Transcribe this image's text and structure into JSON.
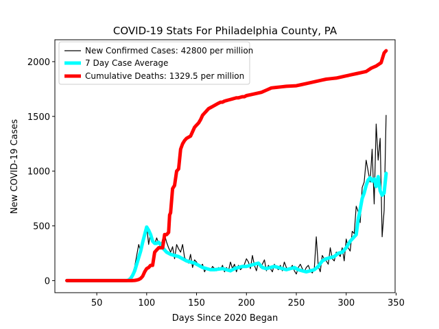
{
  "chart_data": {
    "type": "line",
    "title": "COVID-19 Stats For Philadelphia County, PA",
    "xlabel": "Days Since 2020 Began",
    "ylabel": "New COVID-19 Cases",
    "xlim": [
      8,
      349
    ],
    "ylim": [
      -110,
      2200
    ],
    "xticks": [
      50,
      100,
      150,
      200,
      250,
      300,
      350
    ],
    "yticks": [
      0,
      500,
      1000,
      1500,
      2000
    ],
    "grid": false,
    "legend_position": "top-left",
    "series": [
      {
        "name": "New Confirmed Cases: 42800 per million",
        "color": "#000000",
        "style": "thin",
        "x": [
          20,
          80,
          83,
          86,
          88,
          90,
          92,
          94,
          96,
          98,
          100,
          102,
          104,
          106,
          108,
          110,
          112,
          114,
          116,
          118,
          120,
          122,
          124,
          126,
          128,
          130,
          132,
          134,
          136,
          138,
          140,
          142,
          144,
          146,
          148,
          150,
          152,
          154,
          156,
          158,
          160,
          162,
          164,
          166,
          168,
          170,
          172,
          174,
          176,
          178,
          180,
          182,
          184,
          186,
          188,
          190,
          192,
          194,
          196,
          198,
          200,
          202,
          204,
          206,
          208,
          210,
          212,
          214,
          216,
          218,
          220,
          222,
          224,
          226,
          228,
          230,
          232,
          234,
          236,
          238,
          240,
          242,
          244,
          246,
          248,
          250,
          252,
          254,
          256,
          258,
          260,
          262,
          264,
          266,
          268,
          270,
          272,
          274,
          276,
          278,
          280,
          282,
          284,
          286,
          288,
          290,
          292,
          294,
          296,
          298,
          300,
          302,
          304,
          306,
          308,
          310,
          312,
          314,
          316,
          318,
          320,
          322,
          324,
          326,
          328,
          330,
          332,
          334,
          336,
          338,
          340
        ],
        "y": [
          0,
          0,
          25,
          70,
          130,
          230,
          330,
          260,
          380,
          420,
          500,
          330,
          440,
          360,
          330,
          390,
          340,
          300,
          380,
          420,
          350,
          300,
          260,
          310,
          200,
          330,
          290,
          260,
          330,
          210,
          190,
          160,
          240,
          120,
          190,
          170,
          140,
          130,
          150,
          80,
          120,
          110,
          90,
          130,
          110,
          90,
          120,
          100,
          140,
          80,
          120,
          90,
          170,
          110,
          150,
          80,
          140,
          100,
          120,
          150,
          200,
          170,
          110,
          230,
          140,
          90,
          170,
          120,
          150,
          190,
          90,
          140,
          110,
          80,
          150,
          120,
          100,
          140,
          90,
          170,
          120,
          100,
          110,
          140,
          90,
          60,
          120,
          150,
          110,
          80,
          120,
          140,
          90,
          70,
          110,
          400,
          130,
          80,
          230,
          200,
          180,
          150,
          300,
          200,
          180,
          260,
          250,
          220,
          300,
          180,
          380,
          300,
          270,
          450,
          430,
          680,
          630,
          530,
          850,
          900,
          1100,
          1000,
          900,
          1200,
          700,
          1430,
          1100,
          1300,
          400,
          640,
          1510
        ],
        "ymax_point": [
          340,
          1510
        ]
      },
      {
        "name": "7 Day Case Average",
        "color": "#00ffff",
        "style": "thick",
        "x": [
          20,
          80,
          82,
          84,
          86,
          88,
          90,
          92,
          94,
          96,
          98,
          100,
          102,
          104,
          106,
          108,
          110,
          112,
          114,
          116,
          118,
          120,
          124,
          128,
          132,
          136,
          140,
          144,
          148,
          152,
          156,
          160,
          164,
          168,
          172,
          176,
          180,
          184,
          188,
          192,
          196,
          200,
          204,
          208,
          212,
          216,
          220,
          224,
          228,
          232,
          236,
          240,
          244,
          248,
          252,
          256,
          260,
          264,
          268,
          272,
          276,
          280,
          284,
          288,
          292,
          296,
          300,
          304,
          306,
          308,
          310,
          312,
          314,
          316,
          318,
          320,
          322,
          324,
          326,
          328,
          330,
          332,
          334,
          336,
          338,
          340
        ],
        "y": [
          0,
          0,
          5,
          20,
          50,
          90,
          150,
          210,
          270,
          350,
          420,
          490,
          460,
          420,
          360,
          340,
          340,
          350,
          330,
          300,
          280,
          260,
          240,
          230,
          220,
          200,
          180,
          170,
          160,
          140,
          120,
          110,
          100,
          100,
          105,
          110,
          100,
          90,
          110,
          120,
          130,
          130,
          140,
          150,
          160,
          120,
          110,
          120,
          130,
          120,
          110,
          100,
          110,
          120,
          100,
          90,
          80,
          90,
          100,
          130,
          180,
          200,
          210,
          220,
          250,
          260,
          300,
          360,
          380,
          400,
          420,
          560,
          650,
          750,
          800,
          870,
          920,
          940,
          910,
          930,
          860,
          950,
          820,
          780,
          800,
          980
        ]
      },
      {
        "name": "Cumulative Deaths: 1329.5 per million",
        "color": "#ff0000",
        "style": "thick",
        "x": [
          20,
          85,
          88,
          90,
          92,
          94,
          96,
          98,
          100,
          102,
          104,
          106,
          108,
          110,
          112,
          114,
          116,
          118,
          120,
          122,
          123,
          124,
          126,
          128,
          130,
          132,
          134,
          136,
          138,
          140,
          142,
          144,
          146,
          148,
          150,
          152,
          154,
          156,
          158,
          160,
          162,
          164,
          166,
          168,
          170,
          172,
          174,
          176,
          178,
          180,
          182,
          184,
          186,
          188,
          190,
          192,
          194,
          196,
          198,
          200,
          205,
          210,
          215,
          220,
          225,
          230,
          235,
          240,
          250,
          255,
          260,
          265,
          270,
          275,
          280,
          285,
          290,
          295,
          300,
          305,
          310,
          315,
          320,
          325,
          330,
          335,
          338,
          340
        ],
        "y": [
          0,
          0,
          2,
          5,
          10,
          20,
          40,
          80,
          110,
          120,
          140,
          140,
          260,
          280,
          300,
          300,
          300,
          420,
          420,
          440,
          600,
          620,
          840,
          870,
          1000,
          1020,
          1200,
          1250,
          1280,
          1300,
          1310,
          1320,
          1360,
          1400,
          1420,
          1440,
          1470,
          1510,
          1530,
          1550,
          1570,
          1580,
          1590,
          1600,
          1610,
          1620,
          1630,
          1630,
          1640,
          1645,
          1650,
          1655,
          1660,
          1665,
          1670,
          1670,
          1675,
          1680,
          1680,
          1690,
          1700,
          1710,
          1720,
          1740,
          1760,
          1765,
          1770,
          1775,
          1780,
          1790,
          1800,
          1810,
          1820,
          1830,
          1840,
          1845,
          1850,
          1860,
          1870,
          1880,
          1890,
          1900,
          1910,
          1940,
          1960,
          1990,
          2080,
          2100
        ]
      }
    ]
  }
}
